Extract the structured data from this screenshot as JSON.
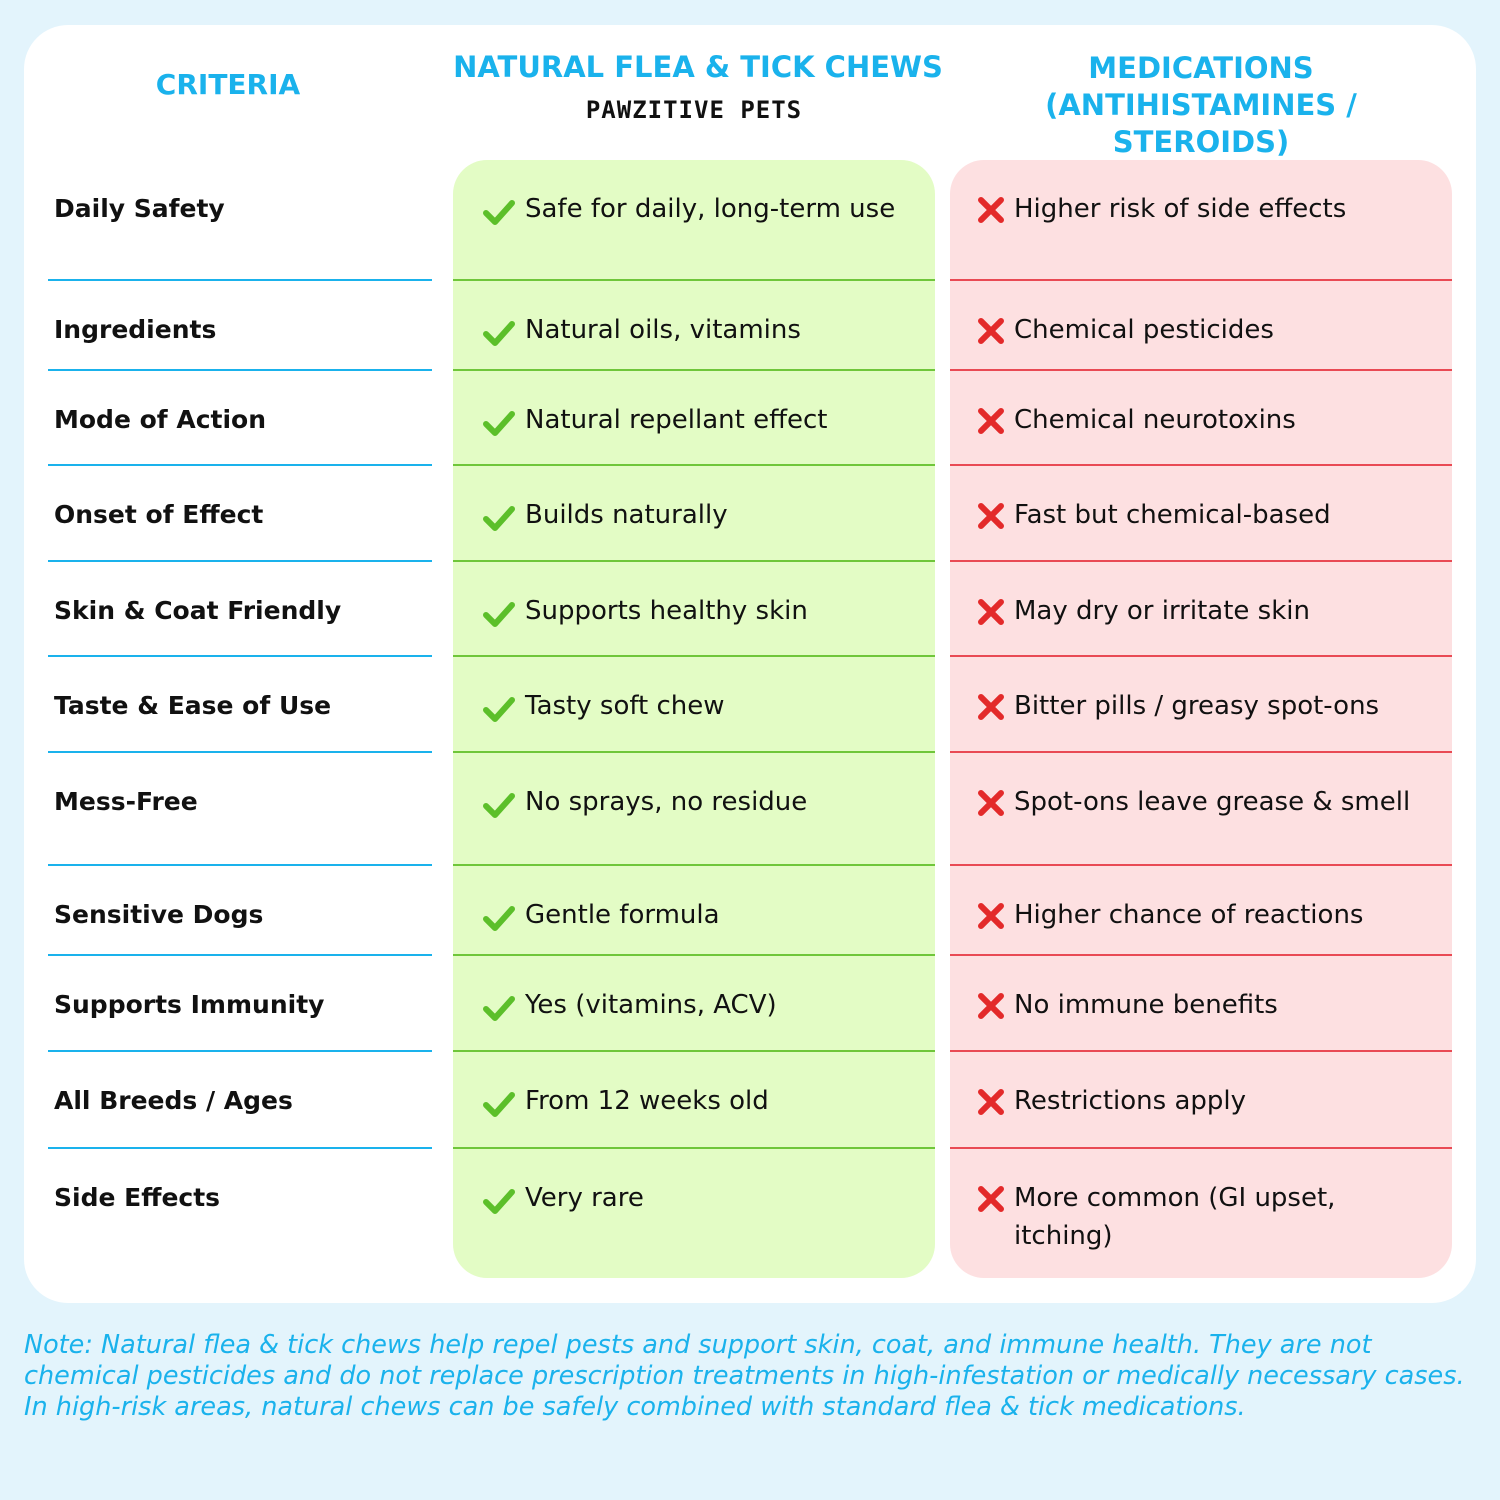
{
  "headers": {
    "criteria": "CRITERIA",
    "natural": "NATURAL FLEA & TICK CHEWS",
    "brand": "PAWZITIVE PETS",
    "medications_line1": "MEDICATIONS",
    "medications_line2": "(ANTIHISTAMINES / STEROIDS)"
  },
  "icons": {
    "positive": "check-icon",
    "negative": "x-icon"
  },
  "colors": {
    "accent": "#1ab2ec",
    "positive_bg": "#e3fcc5",
    "negative_bg": "#fde0e1",
    "check": "#5cbf2a",
    "x": "#e32a2a"
  },
  "rows": [
    {
      "criteria": "Daily Safety",
      "natural": "Safe for daily, long-term use",
      "medication": "Higher risk of side effects"
    },
    {
      "criteria": "Ingredients",
      "natural": "Natural oils, vitamins",
      "medication": "Chemical pesticides"
    },
    {
      "criteria": "Mode of Action",
      "natural": "Natural repellant effect",
      "medication": "Chemical neurotoxins"
    },
    {
      "criteria": "Onset of Effect",
      "natural": "Builds naturally",
      "medication": " Fast but chemical-based"
    },
    {
      "criteria": "Skin & Coat Friendly",
      "natural": "Supports healthy skin",
      "medication": "May dry or irritate skin"
    },
    {
      "criteria": "Taste & Ease of Use",
      "natural": "Tasty soft chew",
      "medication": "Bitter pills / greasy spot-ons"
    },
    {
      "criteria": "Mess-Free",
      "natural": "No sprays, no residue",
      "medication": "Spot-ons leave grease & smell"
    },
    {
      "criteria": "Sensitive Dogs",
      "natural": "Gentle formula",
      "medication": "Higher chance of reactions"
    },
    {
      "criteria": "Supports Immunity",
      "natural": "Yes (vitamins, ACV)",
      "medication": "No immune benefits"
    },
    {
      "criteria": "All Breeds / Ages",
      "natural": "From 12 weeks old",
      "medication": "Restrictions apply"
    },
    {
      "criteria": "Side Effects",
      "natural": "Very rare",
      "medication": "More common (GI upset, itching)"
    }
  ],
  "note": "Note: Natural flea & tick chews help repel pests and support skin, coat, and immune health. They are not chemical pesticides and do not replace prescription treatments in high-infestation or medically necessary cases. In high-risk areas, natural chews can be safely combined with standard flea & tick medications."
}
